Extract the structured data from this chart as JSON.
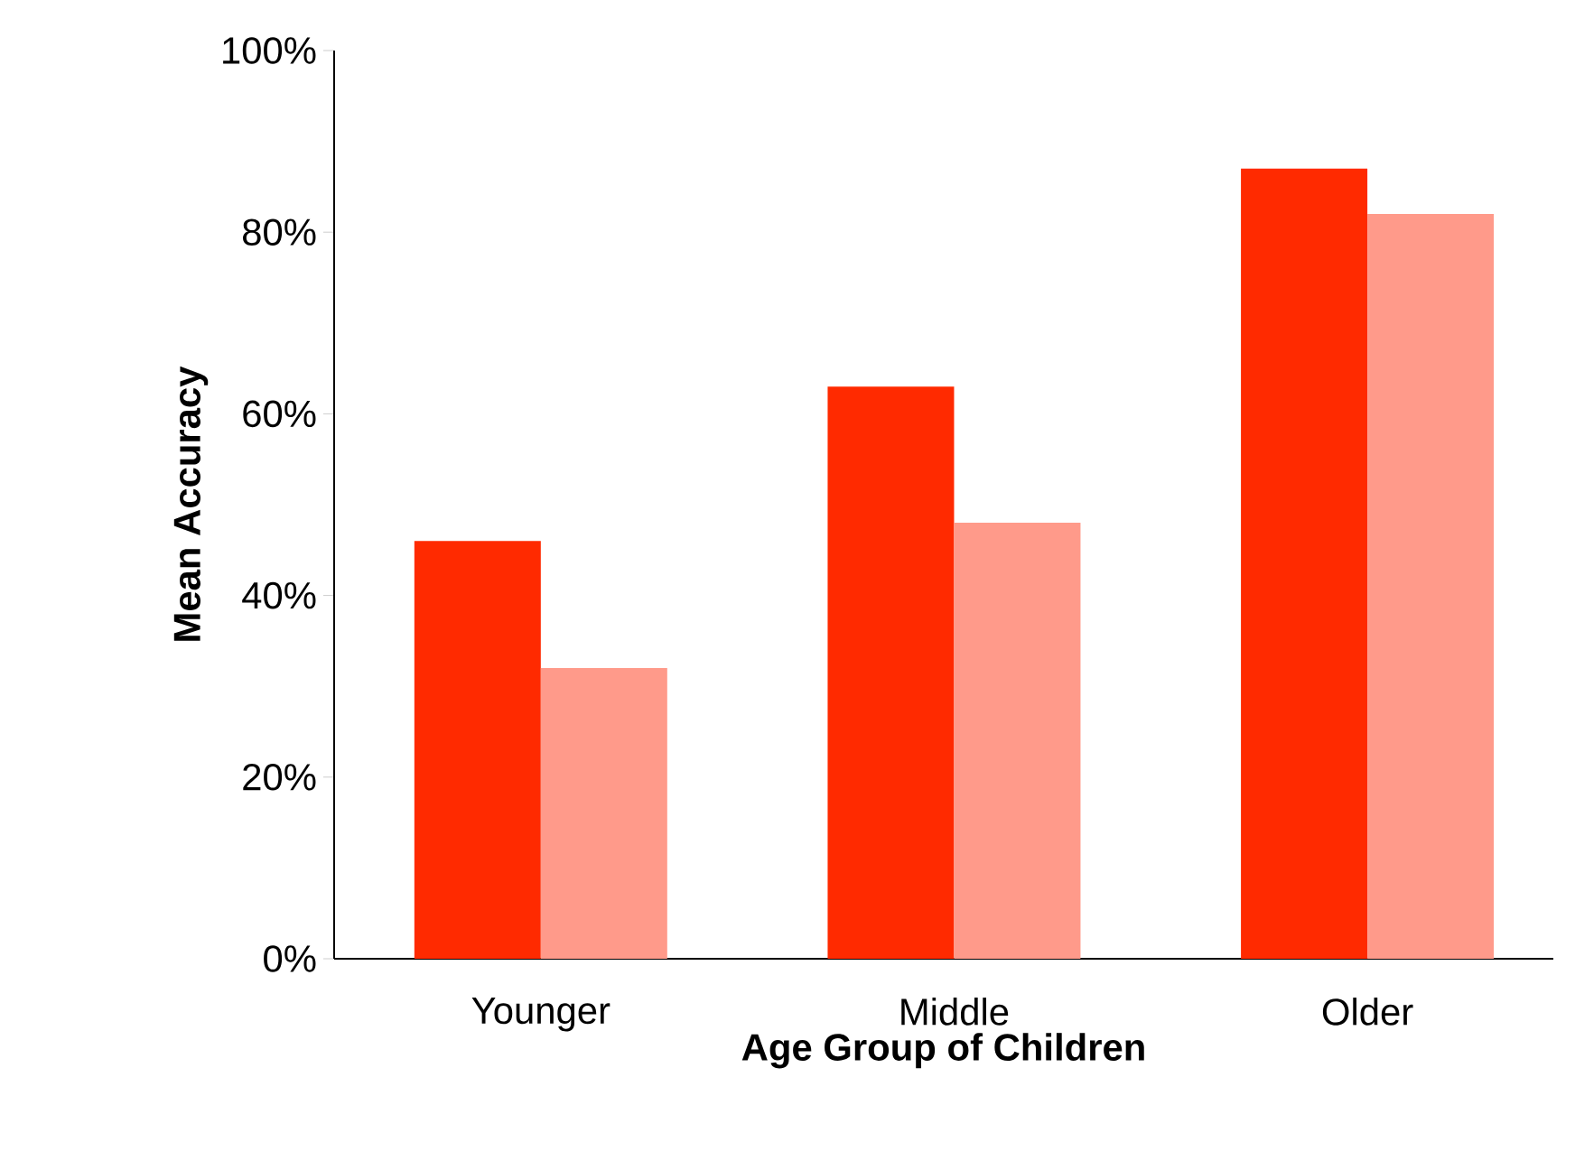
{
  "chart_data": {
    "type": "bar",
    "xlabel": "Age Group of Children",
    "ylabel": "Mean Accuracy",
    "categories": [
      "Younger",
      "Middle",
      "Older"
    ],
    "series": [
      {
        "color": "#ff2a00",
        "values": [
          46,
          63,
          87
        ]
      },
      {
        "color": "#ff9a8a",
        "values": [
          32,
          48,
          82
        ]
      }
    ],
    "ylim": [
      0,
      100
    ],
    "yticks": [
      {
        "value": 0,
        "label": "0%"
      },
      {
        "value": 20,
        "label": "20%"
      },
      {
        "value": 40,
        "label": "40%"
      },
      {
        "value": 60,
        "label": "60%"
      },
      {
        "value": 80,
        "label": "80%"
      },
      {
        "value": 100,
        "label": "100%"
      }
    ],
    "grid": false
  }
}
